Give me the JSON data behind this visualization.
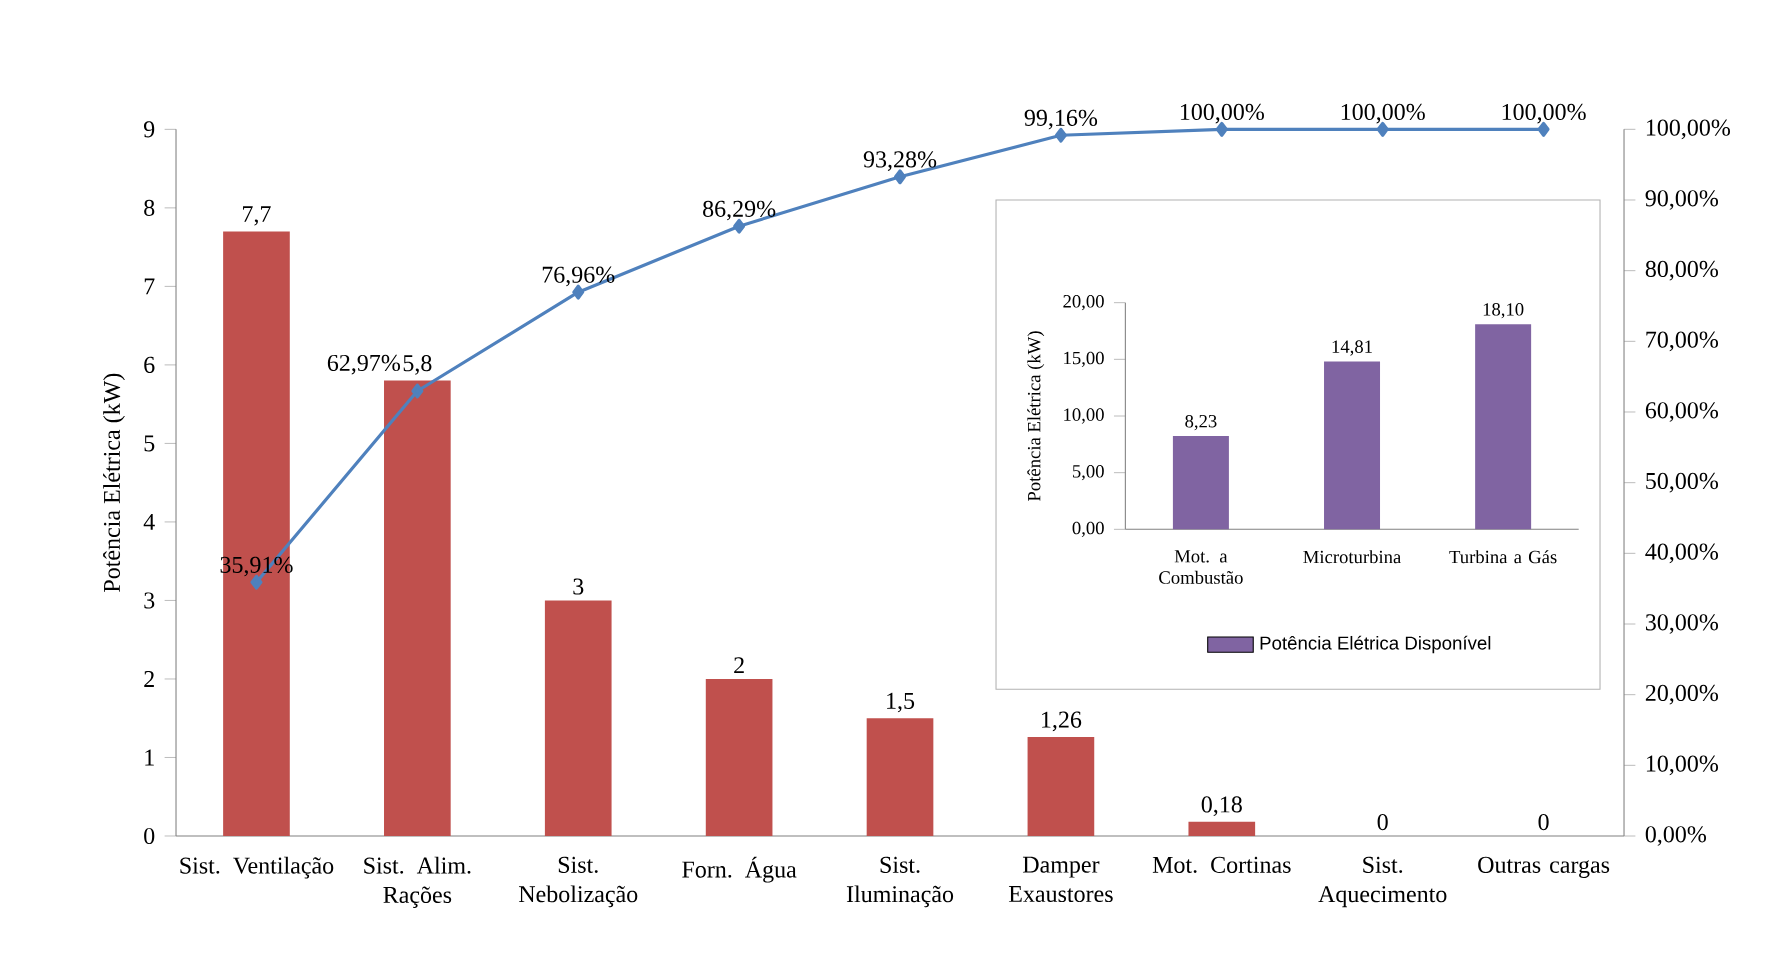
{
  "chart_data": [
    {
      "type": "bar",
      "ylabel": "Potência Elétrica (kW)",
      "categories": [
        "Sist. Ventilação",
        "Sist. Alim. Rações",
        "Sist. Nebolização",
        "Forn. Água",
        "Sist. Iluminação",
        "Damper Exaustores",
        "Mot. Cortinas",
        "Sist. Aquecimento",
        "Outras cargas"
      ],
      "series": [
        {
          "type": "bar",
          "color": "#c0504d",
          "values": [
            7.7,
            5.8,
            3,
            2,
            1.5,
            1.26,
            0.18,
            0,
            0
          ],
          "value_labels": [
            "7,7",
            "5,8",
            "3",
            "2",
            "1,5",
            "1,26",
            "0,18",
            "0",
            "0"
          ]
        },
        {
          "type": "line",
          "axis": "y2",
          "color": "#4f81bd",
          "marker": "diamond",
          "values": [
            35.91,
            62.97,
            76.96,
            86.29,
            93.28,
            99.16,
            100,
            100,
            100
          ],
          "value_labels": [
            "35,91%",
            "62,97%",
            "76,96%",
            "86,29%",
            "93,28%",
            "99,16%",
            "100,00%",
            "100,00%",
            "100,00%"
          ]
        }
      ],
      "ylim": [
        0,
        9
      ],
      "yticks": [
        0,
        1,
        2,
        3,
        4,
        5,
        6,
        7,
        8,
        9
      ],
      "y2lim": [
        0,
        100
      ],
      "y2ticks": [
        {
          "value": 0,
          "label": "0,00%"
        },
        {
          "value": 10,
          "label": "10,00%"
        },
        {
          "value": 20,
          "label": "20,00%"
        },
        {
          "value": 30,
          "label": "30,00%"
        },
        {
          "value": 40,
          "label": "40,00%"
        },
        {
          "value": 50,
          "label": "50,00%"
        },
        {
          "value": 60,
          "label": "60,00%"
        },
        {
          "value": 70,
          "label": "70,00%"
        },
        {
          "value": 80,
          "label": "80,00%"
        },
        {
          "value": 90,
          "label": "90,00%"
        },
        {
          "value": 100,
          "label": "100,00%"
        }
      ]
    },
    {
      "type": "bar",
      "ylabel": "Potência Elétrica (kW)",
      "categories": [
        "Mot. a Combustão",
        "Microturbina",
        "Turbina a Gás"
      ],
      "series": [
        {
          "name": "Potência Elétrica Disponível",
          "color": "#8064a2",
          "values": [
            8.23,
            14.81,
            18.1
          ],
          "value_labels": [
            "8,23",
            "14,81",
            "18,10"
          ]
        }
      ],
      "ylim": [
        0,
        20
      ],
      "yticks": [
        {
          "value": 0,
          "label": "0,00"
        },
        {
          "value": 5,
          "label": "5,00"
        },
        {
          "value": 10,
          "label": "10,00"
        },
        {
          "value": 15,
          "label": "15,00"
        },
        {
          "value": 20,
          "label": "20,00"
        }
      ],
      "legend": "bottom"
    }
  ]
}
